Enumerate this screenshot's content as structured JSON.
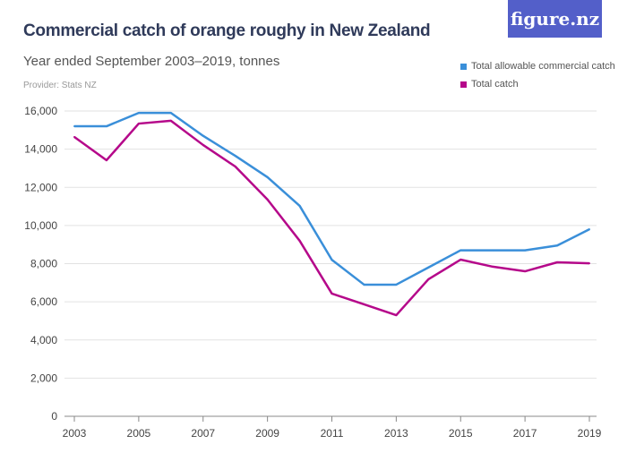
{
  "logo": "figure.nz",
  "chart_data": {
    "type": "line",
    "title": "Commercial catch of orange roughy in New Zealand",
    "subtitle": "Year ended September 2003–2019, tonnes",
    "provider": "Provider: Stats NZ",
    "x": [
      2003,
      2004,
      2005,
      2006,
      2007,
      2008,
      2009,
      2010,
      2011,
      2012,
      2013,
      2014,
      2015,
      2016,
      2017,
      2018,
      2019
    ],
    "xticks": [
      "2003",
      "2005",
      "2007",
      "2009",
      "2011",
      "2013",
      "2015",
      "2017",
      "2019"
    ],
    "yticks": [
      "0",
      "2,000",
      "4,000",
      "6,000",
      "8,000",
      "10,000",
      "12,000",
      "14,000",
      "16,000"
    ],
    "ylim": [
      0,
      16000
    ],
    "grid": true,
    "legend_position": "top-right",
    "series": [
      {
        "name": "Total allowable commercial catch",
        "color": "#3a8fd9",
        "values": [
          15200,
          15200,
          15900,
          15900,
          14700,
          13650,
          12530,
          11030,
          8200,
          6900,
          6900,
          7800,
          8700,
          8700,
          8700,
          8950,
          9800
        ]
      },
      {
        "name": "Total catch",
        "color": "#b5088a",
        "values": [
          14640,
          13420,
          15340,
          15490,
          14220,
          13090,
          11360,
          9200,
          6430,
          5870,
          5300,
          7180,
          8210,
          7840,
          7600,
          8070,
          8020
        ]
      }
    ]
  }
}
